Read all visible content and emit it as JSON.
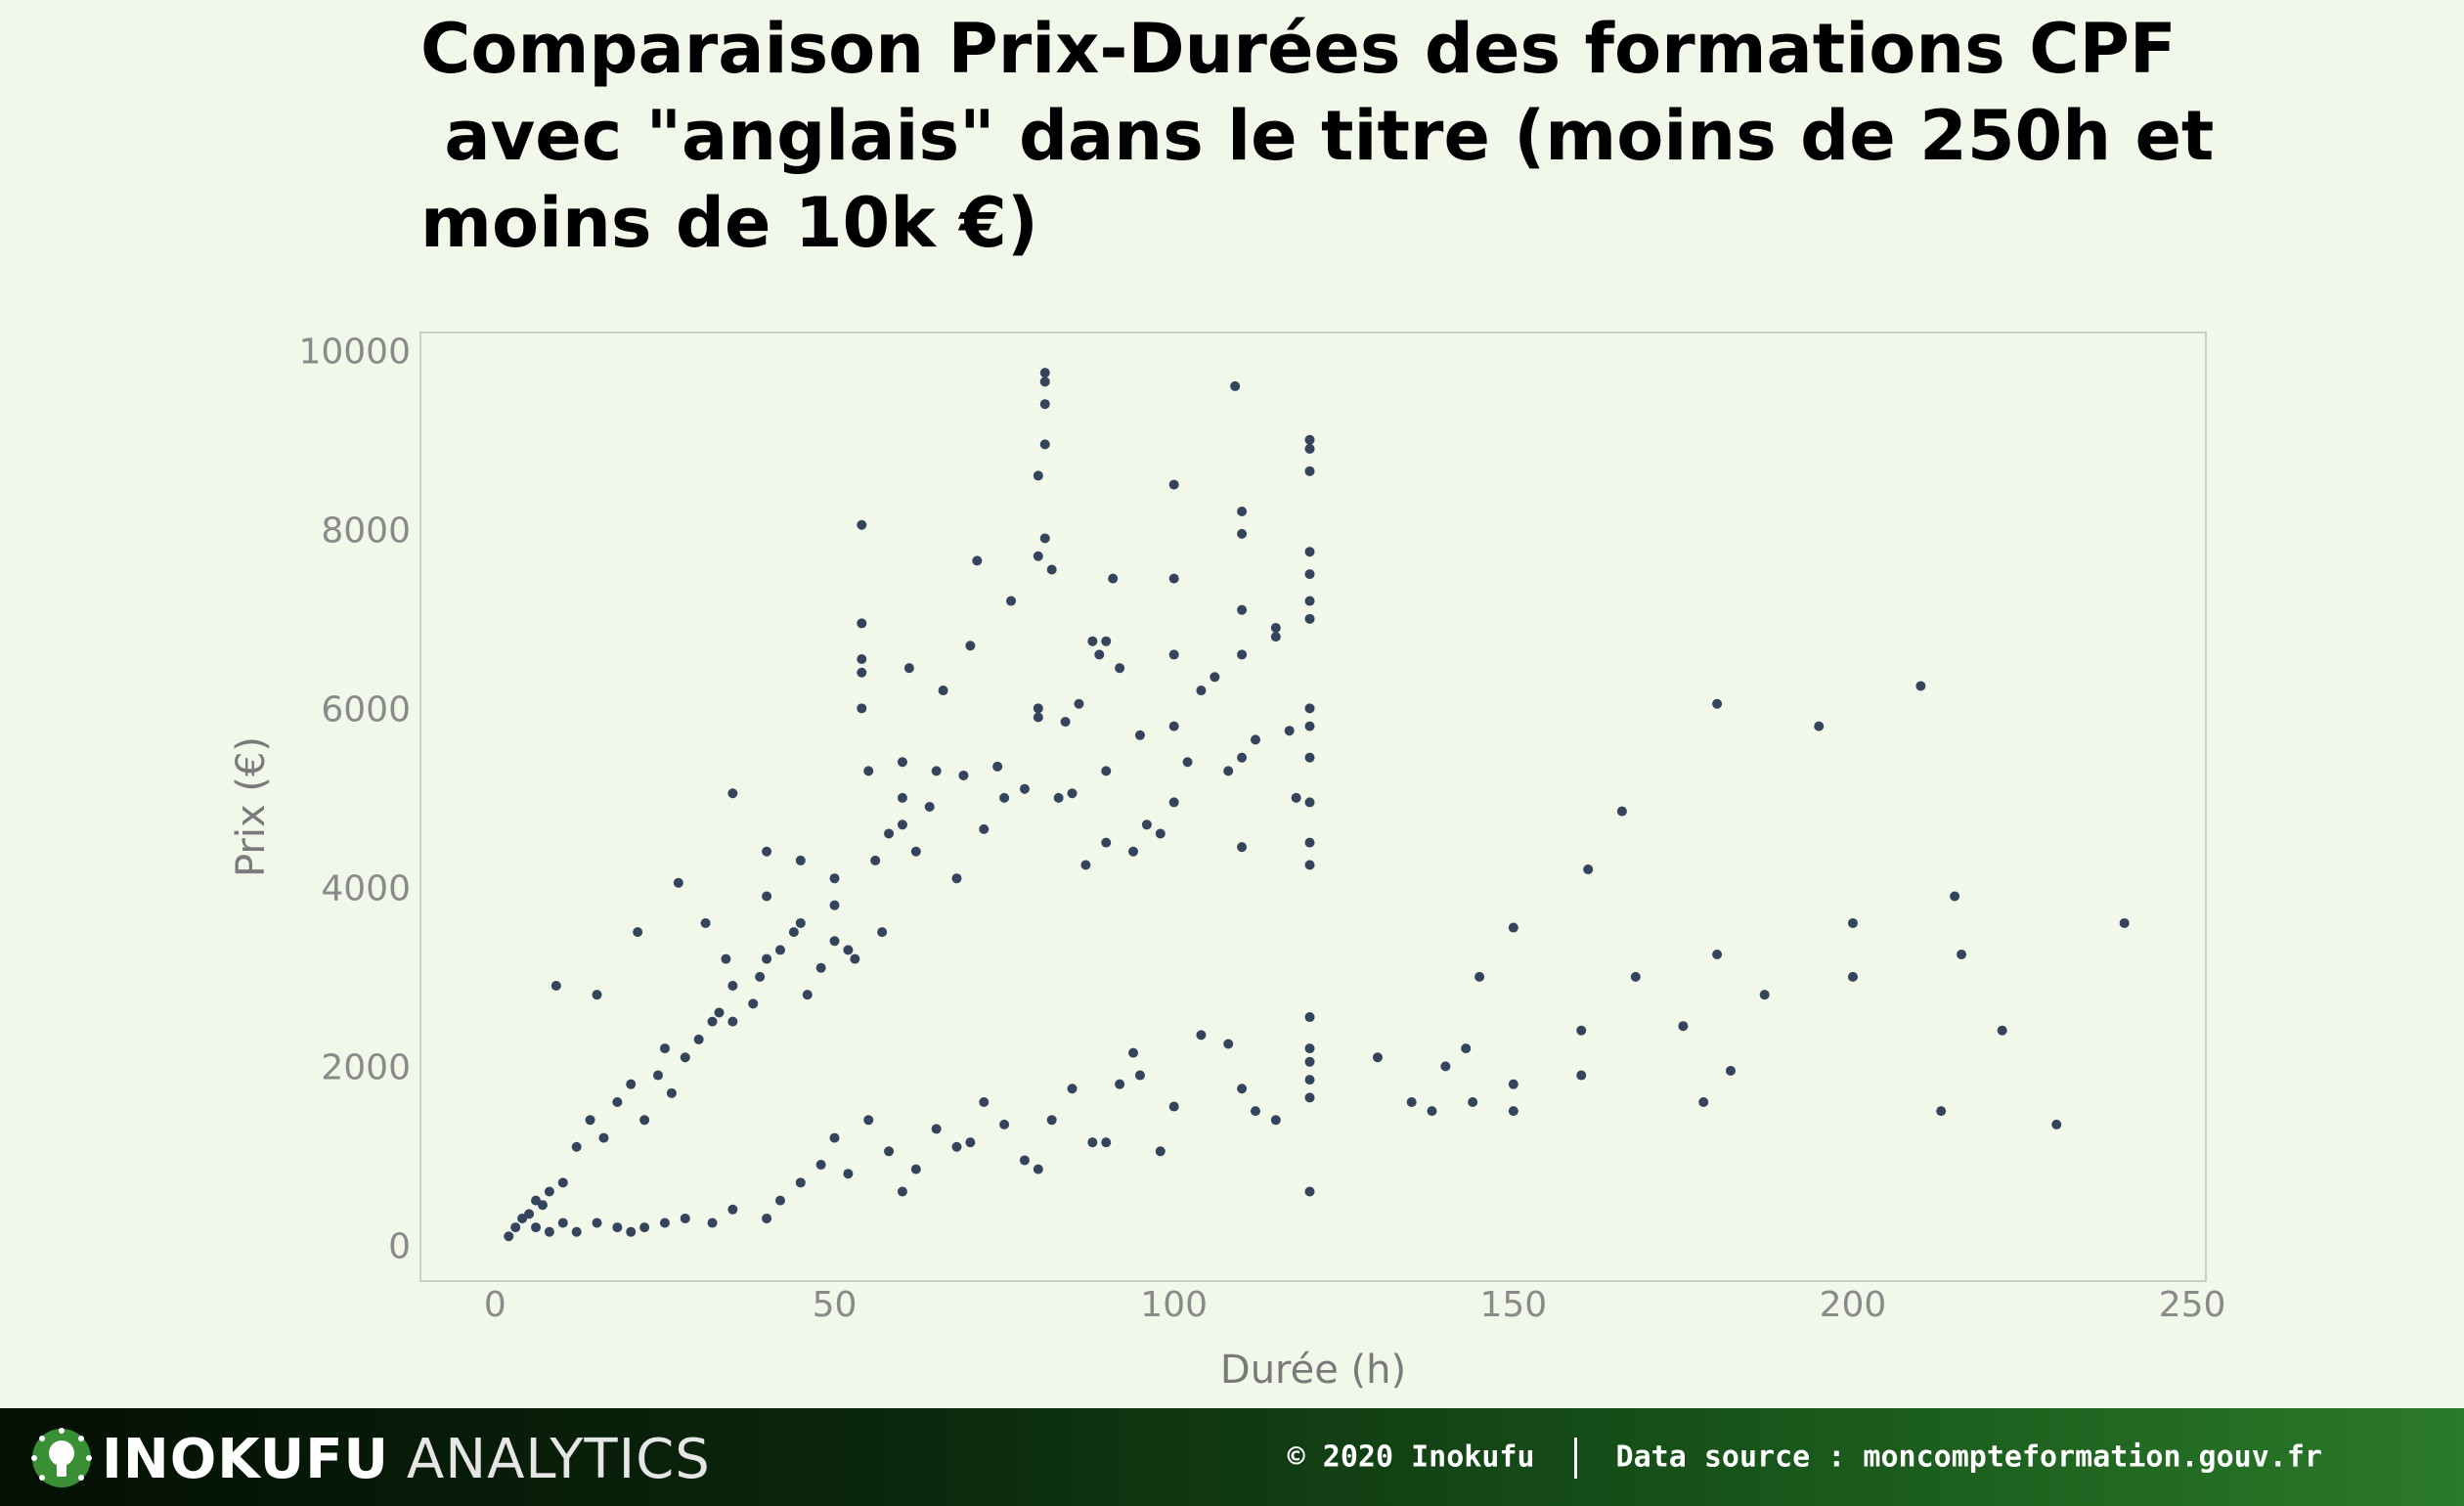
{
  "chart_data": {
    "type": "scatter",
    "title_lines": [
      "Comparaison Prix-Durées des formations CPF",
      " avec \"anglais\" dans le titre (moins de 250h et",
      "moins de 10k €)"
    ],
    "xlabel": "Durée (h)",
    "ylabel": "Prix (€)",
    "xlim": [
      -11,
      252
    ],
    "ylim": [
      -400,
      10200
    ],
    "x_ticks": [
      0,
      50,
      100,
      150,
      200,
      250
    ],
    "y_ticks": [
      0,
      2000,
      4000,
      6000,
      8000,
      10000
    ],
    "grid": false,
    "point_color": "#34445c",
    "series": [
      {
        "points": [
          [
            2,
            100
          ],
          [
            3,
            200
          ],
          [
            4,
            300
          ],
          [
            5,
            350
          ],
          [
            6,
            500
          ],
          [
            7,
            450
          ],
          [
            8,
            600
          ],
          [
            9,
            2900
          ],
          [
            10,
            700
          ],
          [
            12,
            1100
          ],
          [
            14,
            1400
          ],
          [
            15,
            2800
          ],
          [
            16,
            1200
          ],
          [
            18,
            1600
          ],
          [
            20,
            1800
          ],
          [
            21,
            3500
          ],
          [
            22,
            1400
          ],
          [
            24,
            1900
          ],
          [
            25,
            2200
          ],
          [
            26,
            1700
          ],
          [
            27,
            4050
          ],
          [
            28,
            2100
          ],
          [
            30,
            2300
          ],
          [
            31,
            3600
          ],
          [
            32,
            2500
          ],
          [
            33,
            2600
          ],
          [
            34,
            3200
          ],
          [
            35,
            2500
          ],
          [
            35,
            2900
          ],
          [
            35,
            5050
          ],
          [
            38,
            2700
          ],
          [
            39,
            3000
          ],
          [
            40,
            3200
          ],
          [
            40,
            3900
          ],
          [
            40,
            4400
          ],
          [
            42,
            3300
          ],
          [
            44,
            3500
          ],
          [
            45,
            3600
          ],
          [
            45,
            4300
          ],
          [
            46,
            2800
          ],
          [
            48,
            3100
          ],
          [
            50,
            3400
          ],
          [
            50,
            3800
          ],
          [
            50,
            4100
          ],
          [
            52,
            3300
          ],
          [
            53,
            3200
          ],
          [
            54,
            8050
          ],
          [
            54,
            6950
          ],
          [
            54,
            6550
          ],
          [
            54,
            6400
          ],
          [
            54,
            6000
          ],
          [
            55,
            5300
          ],
          [
            56,
            4300
          ],
          [
            57,
            3500
          ],
          [
            58,
            4600
          ],
          [
            60,
            4700
          ],
          [
            60,
            5000
          ],
          [
            60,
            5400
          ],
          [
            61,
            6450
          ],
          [
            62,
            4400
          ],
          [
            64,
            4900
          ],
          [
            65,
            5300
          ],
          [
            66,
            6200
          ],
          [
            68,
            4100
          ],
          [
            69,
            5250
          ],
          [
            70,
            6700
          ],
          [
            71,
            7650
          ],
          [
            72,
            4650
          ],
          [
            74,
            5350
          ],
          [
            75,
            5000
          ],
          [
            76,
            7200
          ],
          [
            78,
            5100
          ],
          [
            80,
            5900
          ],
          [
            80,
            6000
          ],
          [
            80,
            8600
          ],
          [
            80,
            7700
          ],
          [
            81,
            9750
          ],
          [
            81,
            9650
          ],
          [
            81,
            9400
          ],
          [
            81,
            8950
          ],
          [
            81,
            7900
          ],
          [
            82,
            7550
          ],
          [
            83,
            5000
          ],
          [
            84,
            5850
          ],
          [
            85,
            5050
          ],
          [
            86,
            6050
          ],
          [
            87,
            4250
          ],
          [
            88,
            6750
          ],
          [
            89,
            6600
          ],
          [
            90,
            6750
          ],
          [
            90,
            4500
          ],
          [
            90,
            5300
          ],
          [
            91,
            7450
          ],
          [
            92,
            6450
          ],
          [
            94,
            4400
          ],
          [
            95,
            5700
          ],
          [
            96,
            4700
          ],
          [
            98,
            4600
          ],
          [
            100,
            4950
          ],
          [
            100,
            5800
          ],
          [
            100,
            6600
          ],
          [
            100,
            7450
          ],
          [
            100,
            8500
          ],
          [
            102,
            5400
          ],
          [
            104,
            6200
          ],
          [
            106,
            6350
          ],
          [
            108,
            5300
          ],
          [
            109,
            9600
          ],
          [
            110,
            8200
          ],
          [
            110,
            7950
          ],
          [
            110,
            7100
          ],
          [
            110,
            6600
          ],
          [
            110,
            5450
          ],
          [
            110,
            4450
          ],
          [
            112,
            5650
          ],
          [
            115,
            6900
          ],
          [
            115,
            6800
          ],
          [
            117,
            5750
          ],
          [
            118,
            5000
          ],
          [
            120,
            9000
          ],
          [
            120,
            8900
          ],
          [
            120,
            8650
          ],
          [
            120,
            7750
          ],
          [
            120,
            7500
          ],
          [
            120,
            7200
          ],
          [
            120,
            7000
          ],
          [
            120,
            6000
          ],
          [
            120,
            5800
          ],
          [
            120,
            5450
          ],
          [
            120,
            4950
          ],
          [
            120,
            4500
          ],
          [
            120,
            4250
          ],
          [
            120,
            2550
          ],
          [
            120,
            2200
          ],
          [
            120,
            2050
          ],
          [
            120,
            1850
          ],
          [
            120,
            1650
          ],
          [
            120,
            600
          ],
          [
            115,
            1400
          ],
          [
            112,
            1500
          ],
          [
            110,
            1750
          ],
          [
            108,
            2250
          ],
          [
            104,
            2350
          ],
          [
            100,
            1550
          ],
          [
            98,
            1050
          ],
          [
            95,
            1900
          ],
          [
            94,
            2150
          ],
          [
            92,
            1800
          ],
          [
            90,
            1150
          ],
          [
            88,
            1150
          ],
          [
            85,
            1750
          ],
          [
            82,
            1400
          ],
          [
            80,
            850
          ],
          [
            78,
            950
          ],
          [
            75,
            1350
          ],
          [
            72,
            1600
          ],
          [
            70,
            1150
          ],
          [
            68,
            1100
          ],
          [
            65,
            1300
          ],
          [
            62,
            850
          ],
          [
            60,
            600
          ],
          [
            58,
            1050
          ],
          [
            55,
            1400
          ],
          [
            52,
            800
          ],
          [
            50,
            1200
          ],
          [
            48,
            900
          ],
          [
            45,
            700
          ],
          [
            42,
            500
          ],
          [
            40,
            300
          ],
          [
            35,
            400
          ],
          [
            32,
            250
          ],
          [
            28,
            300
          ],
          [
            25,
            250
          ],
          [
            22,
            200
          ],
          [
            20,
            150
          ],
          [
            18,
            200
          ],
          [
            15,
            250
          ],
          [
            12,
            150
          ],
          [
            10,
            250
          ],
          [
            8,
            150
          ],
          [
            6,
            200
          ],
          [
            130,
            2100
          ],
          [
            135,
            1600
          ],
          [
            138,
            1500
          ],
          [
            140,
            2000
          ],
          [
            143,
            2200
          ],
          [
            144,
            1600
          ],
          [
            145,
            3000
          ],
          [
            150,
            1500
          ],
          [
            150,
            1800
          ],
          [
            150,
            3550
          ],
          [
            160,
            2400
          ],
          [
            160,
            1900
          ],
          [
            161,
            4200
          ],
          [
            166,
            4850
          ],
          [
            168,
            3000
          ],
          [
            175,
            2450
          ],
          [
            178,
            1600
          ],
          [
            180,
            6050
          ],
          [
            180,
            3250
          ],
          [
            182,
            1950
          ],
          [
            187,
            2800
          ],
          [
            195,
            5800
          ],
          [
            200,
            3000
          ],
          [
            200,
            3600
          ],
          [
            210,
            6250
          ],
          [
            213,
            1500
          ],
          [
            215,
            3900
          ],
          [
            216,
            3250
          ],
          [
            222,
            2400
          ],
          [
            230,
            1350
          ],
          [
            240,
            3600
          ]
        ]
      }
    ]
  },
  "footer": {
    "brand": "INOKUFU",
    "brand_sub": "ANALYTICS",
    "copyright": "© 2020 Inokufu",
    "source": "Data source : moncompteformation.gouv.fr"
  }
}
